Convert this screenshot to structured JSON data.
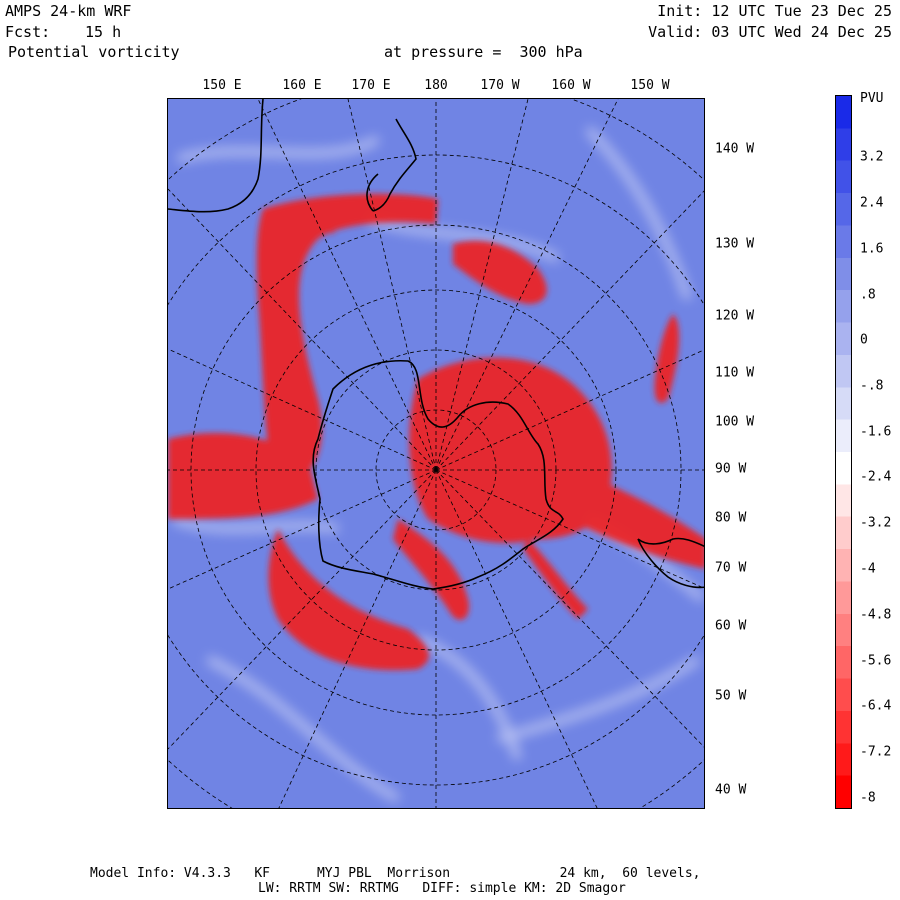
{
  "header": {
    "model": "AMPS 24-km WRF",
    "fcst_label": "Fcst:",
    "fcst_value": "15 h",
    "field": "Potential vorticity",
    "pressure_text": "at pressure =  300 hPa",
    "init": "Init: 12 UTC Tue 23 Dec 25",
    "valid": "Valid: 03 UTC Wed 24 Dec 25"
  },
  "map": {
    "longitude_labels": [
      "150 E",
      "160 E",
      "170 E",
      "180",
      "170 W",
      "160 W",
      "150 W"
    ],
    "latitude_side_labels": [
      "140 W",
      "130 W",
      "120 W",
      "110 W",
      "100 W",
      "90 W",
      "80 W",
      "70 W",
      "60 W",
      "50 W",
      "40 W"
    ],
    "colors": {
      "ocean_blue": "#6f82e6",
      "red": "#f01818",
      "land_line": "#000000",
      "grid": "#000000"
    }
  },
  "colorbar": {
    "unit": "PVU",
    "labels": [
      "3.2",
      "2.4",
      "1.6",
      ".8",
      "0",
      "-.8",
      "-1.6",
      "-2.4",
      "-3.2",
      "-4",
      "-4.8",
      "-5.6",
      "-6.4",
      "-7.2",
      "-8"
    ],
    "colors": [
      "#1a2ae8",
      "#2f3ee8",
      "#4152e8",
      "#5567e8",
      "#6a7ae8",
      "#7f8ee8",
      "#95a1ec",
      "#aab3f0",
      "#c0c7f3",
      "#d6dbf7",
      "#ebedfb",
      "#ffffff",
      "#ffe6e6",
      "#ffcccc",
      "#ffb3b3",
      "#ff9999",
      "#ff8080",
      "#ff6666",
      "#ff4d4d",
      "#ff3333",
      "#ff1a1a",
      "#ff0000"
    ]
  },
  "footer": {
    "line1": "Model Info: V4.3.3   KF      MYJ PBL  Morrison              24 km,  60 levels,",
    "line2": "LW: RRTM SW: RRTMG   DIFF: simple KM: 2D Smagor"
  }
}
